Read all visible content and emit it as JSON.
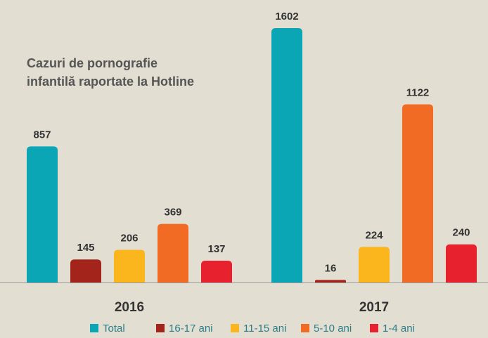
{
  "chart_data": {
    "type": "bar",
    "title": [
      "Cazuri de pornografie",
      "infantilă raportate la Hotline"
    ],
    "categories": [
      "2016",
      "2017"
    ],
    "series": [
      {
        "name": "Total",
        "color": "#0ba6b6",
        "values": [
          857,
          1602
        ]
      },
      {
        "name": "16-17 ani",
        "color": "#a3241a",
        "values": [
          145,
          16
        ]
      },
      {
        "name": "11-15 ani",
        "color": "#fbb51d",
        "values": [
          206,
          224
        ]
      },
      {
        "name": "5-10 ani",
        "color": "#f26b25",
        "values": [
          369,
          1122
        ]
      },
      {
        "name": "1-4 ani",
        "color": "#e8212f",
        "values": [
          137,
          240
        ]
      }
    ]
  }
}
